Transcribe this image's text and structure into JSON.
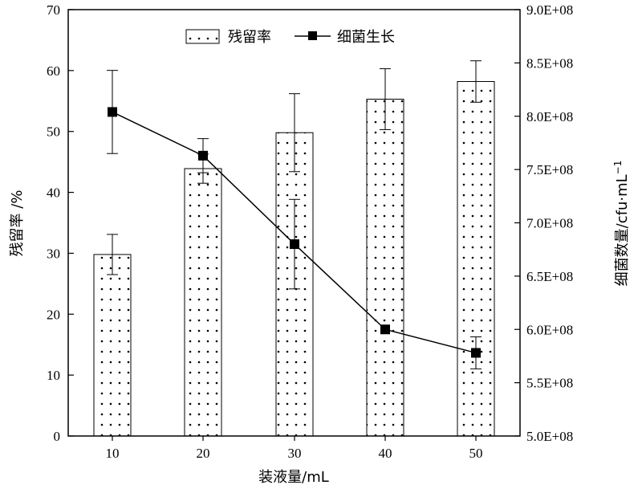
{
  "chart_data": {
    "type": "bar+line",
    "categories": [
      "10",
      "20",
      "30",
      "40",
      "50"
    ],
    "xlabel": "装液量/mL",
    "ylabel_left": "残留率 /%",
    "ylabel_right_main": "细菌数量/cfu·mL",
    "ylabel_right_sup": "−1",
    "ylim_left": [
      0,
      70
    ],
    "yticks_left": [
      "0",
      "10",
      "20",
      "30",
      "40",
      "50",
      "60",
      "70"
    ],
    "ylim_right": [
      500000000,
      900000000
    ],
    "yticks_right": [
      "5.0E+08",
      "5.5E+08",
      "6.0E+08",
      "6.5E+08",
      "7.0E+08",
      "7.5E+08",
      "8.0E+08",
      "8.5E+08",
      "9.0E+08"
    ],
    "legend_position": "top-center",
    "series": [
      {
        "name": "残留率",
        "type": "bar",
        "axis": "left",
        "pattern": "dotted",
        "values": [
          29.8,
          43.9,
          49.8,
          55.3,
          58.2
        ],
        "error": [
          3.3,
          2.4,
          6.4,
          5.0,
          3.4
        ]
      },
      {
        "name": "细菌生长",
        "type": "line",
        "axis": "right",
        "marker": "square",
        "values": [
          804000000,
          763000000,
          680000000,
          600000000,
          578000000
        ],
        "error": [
          39000000,
          16000000,
          42000000,
          0,
          15000000
        ]
      }
    ],
    "colors": {
      "axis": "#000000",
      "bar_fill": "#ffffff",
      "bar_dot": "#000000",
      "line": "#000000"
    }
  }
}
